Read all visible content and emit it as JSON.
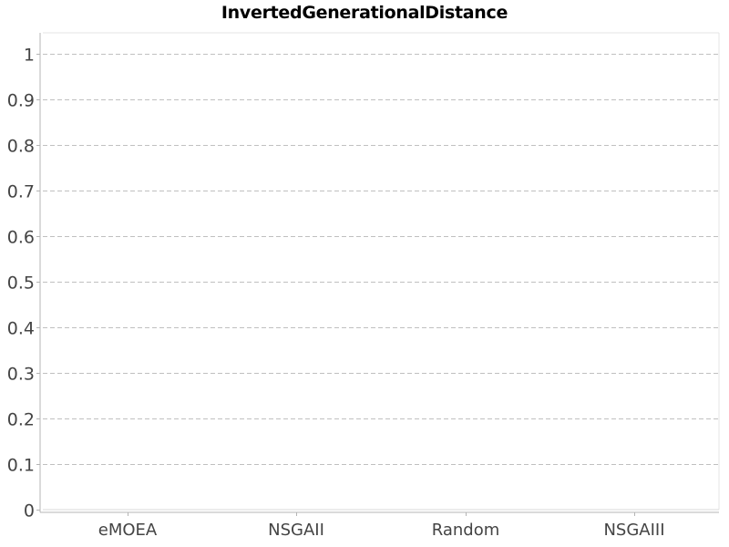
{
  "chart_data": {
    "type": "box",
    "title": "InvertedGenerationalDistance",
    "xlabel": "",
    "ylabel": "",
    "categories": [
      "eMOEA",
      "NSGAII",
      "Random",
      "NSGAIII"
    ],
    "series": [],
    "ylim": [
      0,
      1.05
    ],
    "yticks": [
      "0",
      "0.1",
      "0.2",
      "0.3",
      "0.4",
      "0.5",
      "0.6",
      "0.7",
      "0.8",
      "0.9",
      "1"
    ],
    "grid": true,
    "colors": {
      "grid": "#c0c0c0",
      "axis": "#b4b4b4",
      "tick_text": "#444444",
      "title_text": "#000000",
      "background": "#ffffff"
    }
  }
}
